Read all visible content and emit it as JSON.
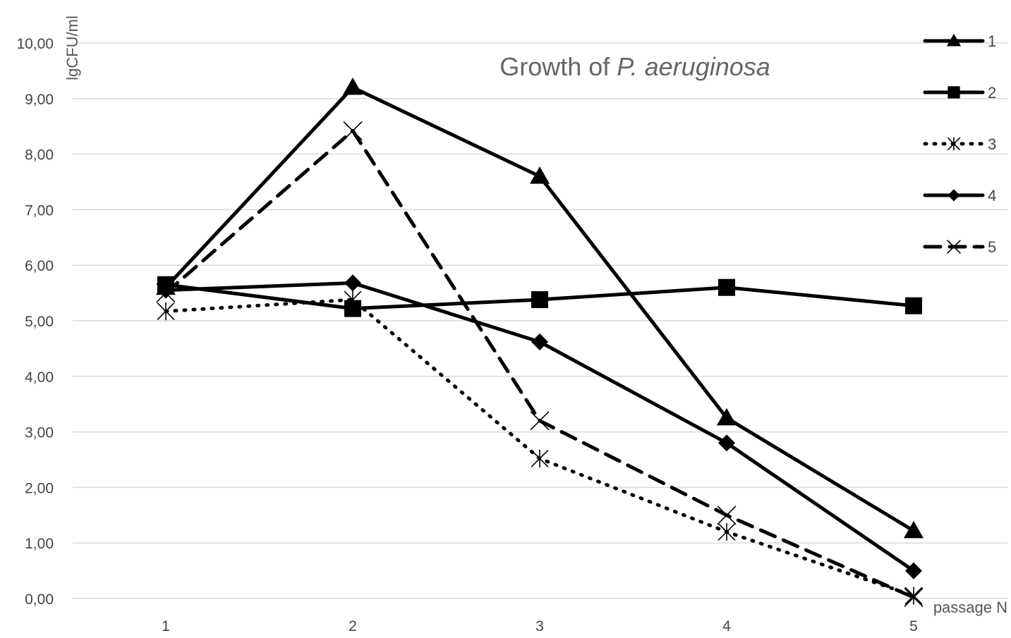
{
  "chart_data": {
    "type": "line",
    "title_prefix": "Growth of ",
    "title_italic": "P. aeruginosa",
    "ylabel": "lgCFU/ml",
    "xlabel": "passage N",
    "categories": [
      "1",
      "2",
      "3",
      "4",
      "5"
    ],
    "ylim": [
      0,
      10
    ],
    "y_ticks": [
      "0,00",
      "1,00",
      "2,00",
      "3,00",
      "4,00",
      "5,00",
      "6,00",
      "7,00",
      "8,00",
      "9,00",
      "10,00"
    ],
    "grid": "horizontal",
    "legend_position": "right",
    "series": [
      {
        "name": "1",
        "values": [
          5.6,
          9.2,
          7.6,
          3.25,
          1.22
        ],
        "marker": "triangle",
        "dash": "solid",
        "color": "#000000"
      },
      {
        "name": "2",
        "values": [
          5.65,
          5.22,
          5.38,
          5.6,
          5.27
        ],
        "marker": "square",
        "dash": "solid",
        "color": "#000000"
      },
      {
        "name": "3",
        "values": [
          5.17,
          5.38,
          2.52,
          1.2,
          0.05
        ],
        "marker": "asterisk",
        "dash": "dotted",
        "color": "#000000"
      },
      {
        "name": "4",
        "values": [
          5.55,
          5.68,
          4.62,
          2.8,
          0.5
        ],
        "marker": "diamond",
        "dash": "solid",
        "color": "#000000"
      },
      {
        "name": "5",
        "values": [
          5.5,
          8.42,
          3.2,
          1.5,
          0.02
        ],
        "marker": "x",
        "dash": "dashed",
        "color": "#000000"
      }
    ]
  }
}
